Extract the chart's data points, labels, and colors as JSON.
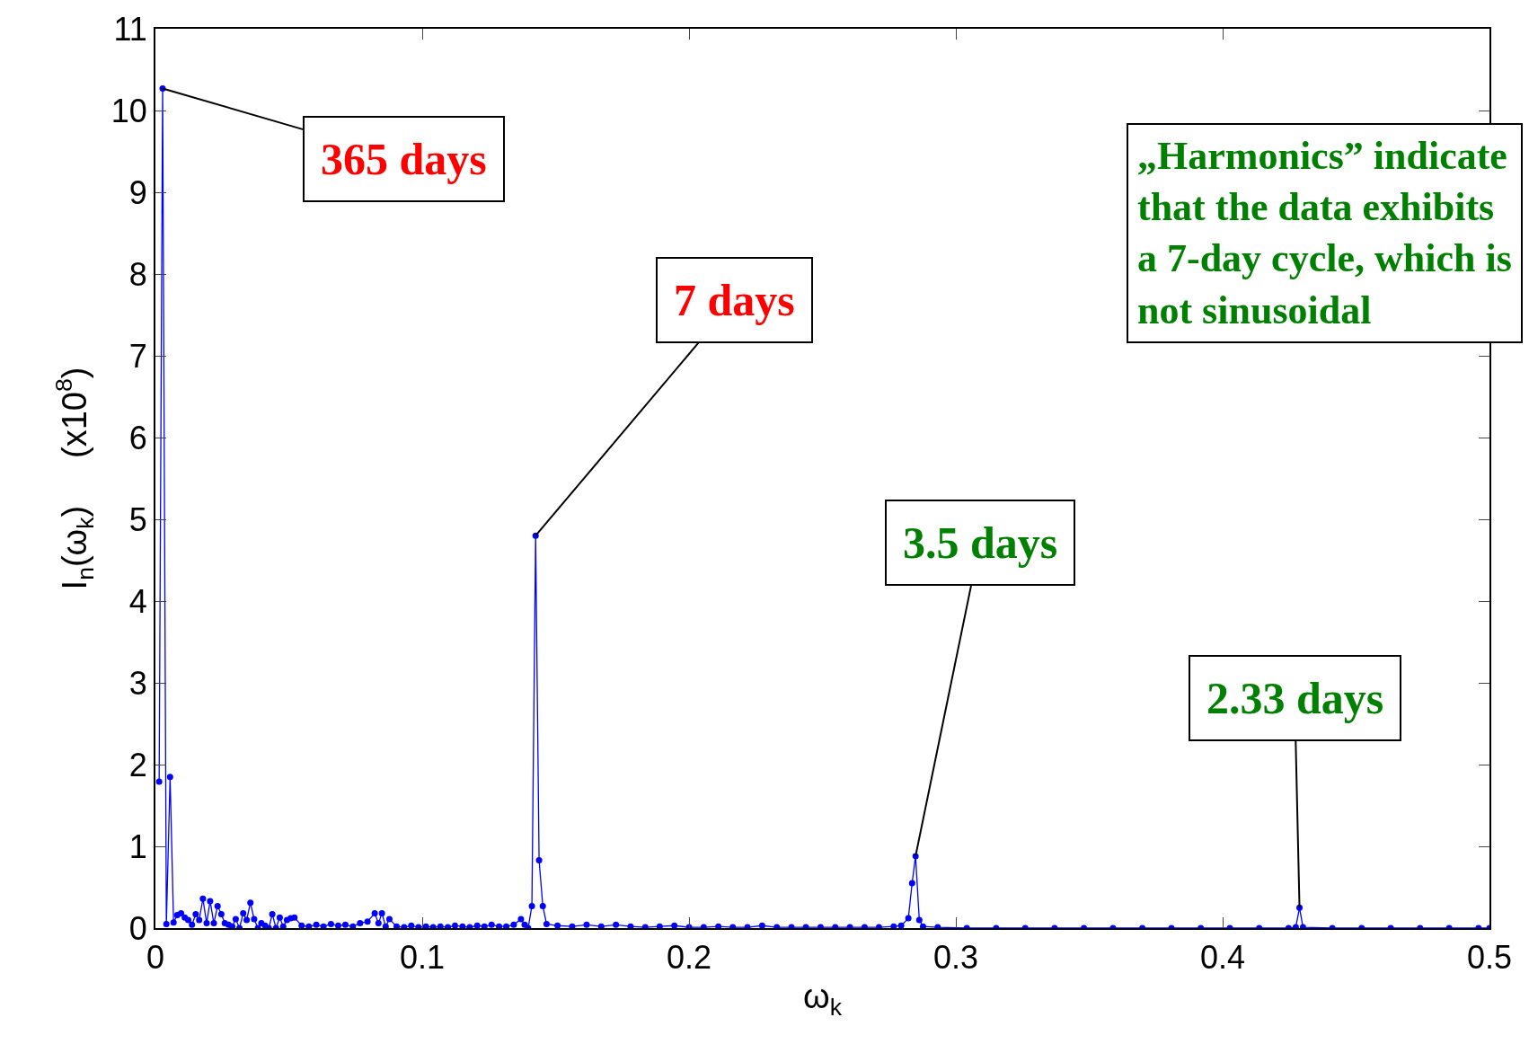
{
  "chart_data": {
    "type": "line",
    "xlabel": "ω$_{k}$",
    "ylabel": "I$_{n}$(ω$_{k}$)     (x10$^{8}$)",
    "series": [
      {
        "color": "#0000ff",
        "x": [
          0.0014,
          0.0027,
          0.0041,
          0.0055,
          0.0068,
          0.0082,
          0.0096,
          0.011,
          0.0123,
          0.0137,
          0.0151,
          0.0164,
          0.0178,
          0.0192,
          0.0205,
          0.0219,
          0.0233,
          0.0247,
          0.026,
          0.0274,
          0.0288,
          0.0301,
          0.0315,
          0.0329,
          0.0342,
          0.0356,
          0.037,
          0.0384,
          0.0397,
          0.0411,
          0.0425,
          0.0438,
          0.0452,
          0.0466,
          0.0479,
          0.0493,
          0.0507,
          0.0521,
          0.0548,
          0.0575,
          0.0603,
          0.063,
          0.0658,
          0.0685,
          0.0712,
          0.074,
          0.0767,
          0.0795,
          0.0822,
          0.0836,
          0.0849,
          0.0863,
          0.0877,
          0.0904,
          0.0932,
          0.0959,
          0.0986,
          0.1014,
          0.1041,
          0.1068,
          0.1096,
          0.1123,
          0.1151,
          0.1178,
          0.1206,
          0.1233,
          0.126,
          0.1288,
          0.1315,
          0.1343,
          0.137,
          0.1384,
          0.1397,
          0.1411,
          0.1425,
          0.1438,
          0.1452,
          0.1466,
          0.1507,
          0.1562,
          0.1616,
          0.1671,
          0.1726,
          0.1781,
          0.1836,
          0.189,
          0.1945,
          0.2,
          0.2055,
          0.211,
          0.2164,
          0.2219,
          0.2274,
          0.2329,
          0.2384,
          0.2438,
          0.2493,
          0.2548,
          0.2603,
          0.2658,
          0.2712,
          0.2767,
          0.2795,
          0.2822,
          0.2836,
          0.2849,
          0.2863,
          0.2877,
          0.2932,
          0.3041,
          0.3151,
          0.326,
          0.337,
          0.348,
          0.3589,
          0.3699,
          0.3808,
          0.3918,
          0.4027,
          0.4137,
          0.4247,
          0.4274,
          0.4288,
          0.4301,
          0.4411,
          0.4521,
          0.463,
          0.474,
          0.4849,
          0.4959,
          0.5
        ],
        "values": [
          1.79,
          10.27,
          0.05,
          1.85,
          0.07,
          0.16,
          0.18,
          0.13,
          0.1,
          0.04,
          0.17,
          0.1,
          0.36,
          0.06,
          0.33,
          0.06,
          0.27,
          0.17,
          0.06,
          0.04,
          0.02,
          0.11,
          0,
          0.18,
          0.1,
          0.31,
          0.11,
          0,
          0.06,
          0.03,
          0,
          0.17,
          0,
          0.13,
          0.02,
          0.1,
          0.12,
          0.13,
          0.03,
          0.02,
          0.04,
          0.02,
          0.05,
          0.03,
          0.04,
          0.02,
          0.06,
          0.08,
          0.18,
          0.06,
          0.18,
          0.02,
          0.11,
          0.02,
          0.01,
          0.03,
          0.01,
          0.02,
          0.01,
          0.02,
          0.01,
          0.03,
          0.02,
          0.01,
          0.03,
          0.02,
          0.04,
          0.02,
          0.02,
          0.04,
          0.11,
          0.04,
          0,
          0.27,
          4.8,
          0.83,
          0.27,
          0.05,
          0.03,
          0.02,
          0.04,
          0.02,
          0.04,
          0.02,
          0.01,
          0.02,
          0.03,
          0.01,
          0.01,
          0.02,
          0.01,
          0.01,
          0.03,
          0.01,
          0.01,
          0.01,
          0.01,
          0.01,
          0.01,
          0.01,
          0.01,
          0.02,
          0.03,
          0.12,
          0.55,
          0.88,
          0.1,
          0.02,
          0.01,
          0,
          0,
          0,
          0,
          0,
          0,
          0,
          0,
          0,
          0,
          0,
          0,
          0.01,
          0.25,
          0.01,
          0,
          0,
          0,
          0,
          0,
          0,
          0
        ]
      }
    ],
    "xlim": [
      0,
      0.5
    ],
    "xticks": [
      0,
      0.1,
      0.2,
      0.3,
      0.4,
      0.5
    ],
    "ylim": [
      0,
      11
    ],
    "yticks": [
      0,
      1,
      2,
      3,
      4,
      5,
      6,
      7,
      8,
      9,
      10,
      11
    ],
    "legend": false,
    "marker": "circle",
    "line_style": "solid",
    "annotations": [
      {
        "text": "365 days",
        "x": 0.0027,
        "y": 10.27
      },
      {
        "text": "7 days",
        "x": 0.1425,
        "y": 4.8
      },
      {
        "text": "3.5 days",
        "x": 0.2849,
        "y": 0.88
      },
      {
        "text": "2.33 days",
        "x": 0.4288,
        "y": 0.25
      },
      "„Harmonics” indicate\nthat the data exhibits\na 7-day cycle, which is\nnot sinusoidal"
    ]
  }
}
